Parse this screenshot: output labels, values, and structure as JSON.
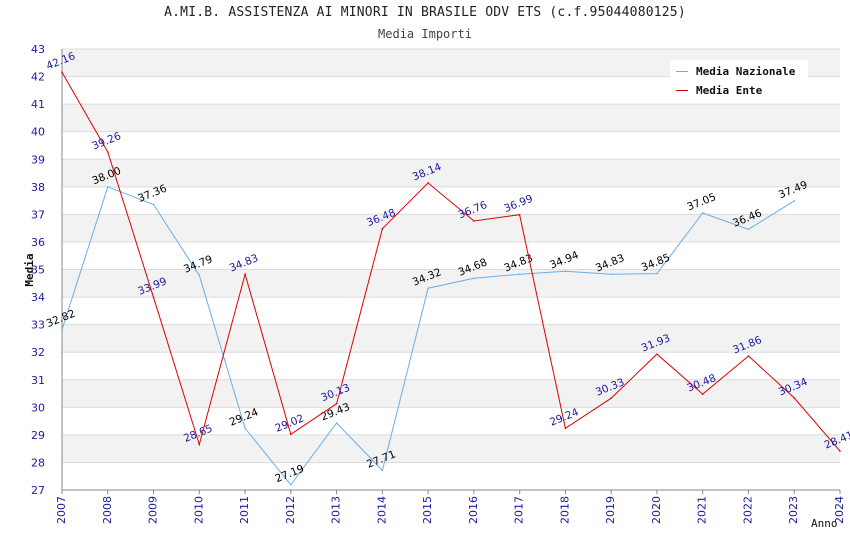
{
  "chart_data": {
    "type": "line",
    "title": "A.MI.B. ASSISTENZA AI MINORI IN BRASILE ODV ETS (c.f.95044080125)",
    "subtitle": "Media Importi",
    "xlabel": "Anno",
    "ylabel": "Media",
    "x": [
      "2007",
      "2008",
      "2009",
      "2010",
      "2011",
      "2012",
      "2013",
      "2014",
      "2015",
      "2016",
      "2017",
      "2018",
      "2019",
      "2020",
      "2021",
      "2022",
      "2023",
      "2024"
    ],
    "ylim": [
      27,
      43
    ],
    "yticks": [
      "27",
      "28",
      "29",
      "30",
      "31",
      "32",
      "33",
      "34",
      "35",
      "36",
      "37",
      "38",
      "39",
      "40",
      "41",
      "42",
      "43"
    ],
    "grid": true,
    "legend_position": "top-right",
    "series": [
      {
        "name": "Media Nazionale",
        "color": "#6aaee8",
        "label_color": "#000000",
        "values": [
          32.82,
          38.0,
          37.36,
          34.79,
          29.24,
          27.19,
          29.43,
          27.71,
          34.32,
          34.68,
          34.83,
          34.94,
          34.83,
          34.85,
          37.05,
          36.46,
          37.49,
          null
        ],
        "labels": [
          "32.82",
          "38.00",
          "37.36",
          "34.79",
          "29.24",
          "27.19",
          "29.43",
          "27.71",
          "34.32",
          "34.68",
          "34.83",
          "34.94",
          "34.83",
          "34.85",
          "37.05",
          "36.46",
          "37.49",
          ""
        ]
      },
      {
        "name": "Media Ente",
        "color": "#dd0000",
        "label_color": "#1a1aa0",
        "values": [
          42.16,
          39.26,
          33.99,
          28.65,
          34.83,
          29.02,
          30.13,
          36.48,
          38.14,
          36.76,
          36.99,
          29.24,
          30.33,
          31.93,
          30.48,
          31.86,
          30.34,
          28.41
        ],
        "labels": [
          "42.16",
          "39.26",
          "33.99",
          "28.65",
          "34.83",
          "29.02",
          "30.13",
          "36.48",
          "38.14",
          "36.76",
          "36.99",
          "29.24",
          "30.33",
          "31.93",
          "30.48",
          "31.86",
          "30.34",
          "28.41"
        ]
      }
    ]
  }
}
